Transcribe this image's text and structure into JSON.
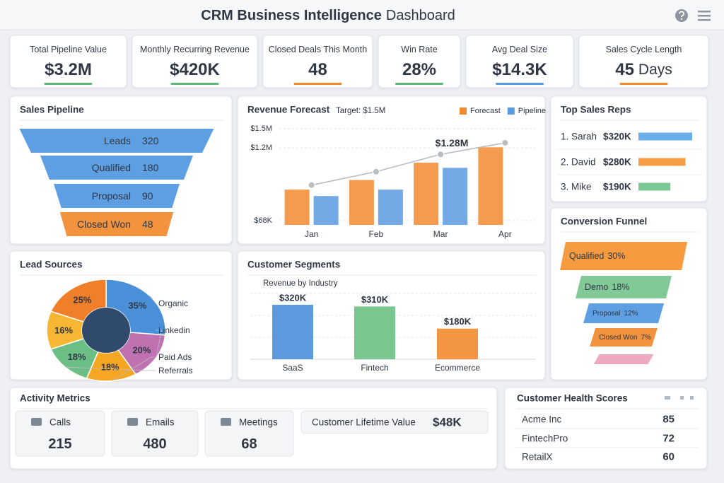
{
  "header": {
    "title_bold": "CRM Business Intelligence",
    "title_light": "Dashboard"
  },
  "kpis": [
    {
      "label": "Total Pipeline Value",
      "value": "$3.2M",
      "color": "#5cb87a"
    },
    {
      "label": "Monthly Recurring Revenue",
      "value": "$420K",
      "color": "#5cb87a"
    },
    {
      "label": "Closed Deals This Month",
      "value": "48",
      "color": "#f28a2e"
    },
    {
      "label": "Win Rate",
      "value": "28%",
      "color": "#5cb87a"
    },
    {
      "label": "Avg Deal Size",
      "value": "$14.3K",
      "color": "#5a9be0"
    },
    {
      "label": "Sales Cycle Length",
      "value": "45",
      "unit": "Days",
      "color": "#f28a2e"
    }
  ],
  "chart_data": [
    {
      "type": "funnel",
      "title": "Sales Pipeline",
      "categories": [
        "Leads",
        "Qualified",
        "Proposal",
        "Closed Won"
      ],
      "values": [
        320,
        180,
        90,
        48
      ],
      "colors": [
        "#4f97e0",
        "#4f97e0",
        "#4f97e0",
        "#f28a2e"
      ]
    },
    {
      "type": "bar",
      "title": "Revenue Forecast",
      "subtitle": "Target: $1.5M",
      "categories": [
        "Jan",
        "Feb",
        "Mar",
        "Apr"
      ],
      "series": [
        {
          "name": "Forecast",
          "color": "#f28a2e",
          "values": [
            550000,
            700000,
            970000,
            1210000
          ]
        },
        {
          "name": "Pipeline",
          "color": "#5a9be0",
          "values": [
            450000,
            550000,
            890000,
            null
          ]
        }
      ],
      "trend": {
        "color": "#b8bcc4",
        "values": [
          620000,
          830000,
          1100000,
          1280000
        ],
        "value_labels": [
          null,
          null,
          null,
          "$1.28M"
        ]
      },
      "ylim": [
        0,
        1500000
      ],
      "yticks": [
        {
          "value": 68000,
          "label": "$68K"
        },
        {
          "value": 1200000,
          "label": "$1.2M"
        },
        {
          "value": 1500000,
          "label": "$1.5M"
        }
      ],
      "grid": true,
      "legend": "top-right"
    },
    {
      "type": "hbar",
      "title": "Top Sales Reps",
      "categories": [
        "1. Sarah",
        "2. David",
        "3. Mike"
      ],
      "values": [
        320,
        280,
        190
      ],
      "value_labels": [
        "$320K",
        "$280K",
        "$190K"
      ],
      "colors": [
        "#5aa6e8",
        "#f5922f",
        "#6cc28a"
      ]
    },
    {
      "type": "funnel",
      "title": "Conversion Funnel",
      "categories": [
        "Qualified",
        "Demo",
        "Proposal",
        "Closed Won",
        null
      ],
      "values": [
        30,
        18,
        12,
        7,
        4
      ],
      "value_labels": [
        "30%",
        "18%",
        "12%",
        "7%",
        null
      ],
      "colors": [
        "#f5922f",
        "#76c48e",
        "#4f97e0",
        "#f28a2e",
        "#eaa3b8"
      ]
    },
    {
      "type": "pie",
      "title": "Lead Sources",
      "categories": [
        "Organic",
        "Linkedin",
        "Paid Ads",
        "Referrals",
        null,
        null
      ],
      "values": [
        35,
        20,
        18,
        18,
        16,
        25
      ],
      "value_labels": [
        "35%",
        "20%",
        "18%",
        "18%",
        "16%",
        "25%"
      ],
      "colors": [
        "#4a90d9",
        "#c071b0",
        "#f5a623",
        "#6cbf84",
        "#f7b733",
        "#f07f2a"
      ]
    },
    {
      "type": "bar",
      "title": "Customer Segments",
      "subtitle": "Revenue by Industry",
      "categories": [
        "SaaS",
        "Fintech",
        "Ecommerce"
      ],
      "values": [
        320,
        310,
        180
      ],
      "value_labels": [
        "$320K",
        "$310K",
        "$180K"
      ],
      "colors": [
        "#4a8fd9",
        "#6cbf84",
        "#f28a2e"
      ]
    }
  ],
  "activity_metrics": {
    "title": "Activity Metrics",
    "items": [
      {
        "label": "Calls",
        "value": 215
      },
      {
        "label": "Emails",
        "value": 480
      },
      {
        "label": "Meetings",
        "value": 68
      }
    ],
    "lifetime_value": {
      "label": "Customer Lifetime Value",
      "value": "$48K"
    }
  },
  "health_scores": {
    "title": "Customer Health Scores",
    "rows": [
      {
        "name": "Acme Inc",
        "score": 85
      },
      {
        "name": "FintechPro",
        "score": 72
      },
      {
        "name": "RetailX",
        "score": 60
      }
    ]
  }
}
